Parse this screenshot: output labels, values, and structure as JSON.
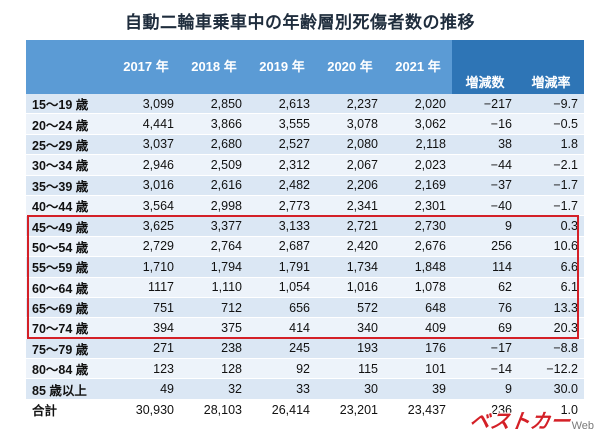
{
  "title": "自動二輪車乗車中の年齢層別死傷者数の推移",
  "columns": [
    "",
    "2017 年",
    "2018 年",
    "2019 年",
    "2020 年",
    "2021 年",
    "増減数",
    "増減率"
  ],
  "rows": [
    {
      "label": "15～19 歳",
      "values": [
        "3,099",
        "2,850",
        "2,613",
        "2,237",
        "2,020",
        "−217",
        "−9.7"
      ]
    },
    {
      "label": "20～24 歳",
      "values": [
        "4,441",
        "3,866",
        "3,555",
        "3,078",
        "3,062",
        "−16",
        "−0.5"
      ]
    },
    {
      "label": "25～29 歳",
      "values": [
        "3,037",
        "2,680",
        "2,527",
        "2,080",
        "2,118",
        "38",
        "1.8"
      ]
    },
    {
      "label": "30～34 歳",
      "values": [
        "2,946",
        "2,509",
        "2,312",
        "2,067",
        "2,023",
        "−44",
        "−2.1"
      ]
    },
    {
      "label": "35～39 歳",
      "values": [
        "3,016",
        "2,616",
        "2,482",
        "2,206",
        "2,169",
        "−37",
        "−1.7"
      ]
    },
    {
      "label": "40～44 歳",
      "values": [
        "3,564",
        "2,998",
        "2,773",
        "2,341",
        "2,301",
        "−40",
        "−1.7"
      ]
    },
    {
      "label": "45～49 歳",
      "values": [
        "3,625",
        "3,377",
        "3,133",
        "2,721",
        "2,730",
        "9",
        "0.3"
      ]
    },
    {
      "label": "50～54 歳",
      "values": [
        "2,729",
        "2,764",
        "2,687",
        "2,420",
        "2,676",
        "256",
        "10.6"
      ]
    },
    {
      "label": "55～59 歳",
      "values": [
        "1,710",
        "1,794",
        "1,791",
        "1,734",
        "1,848",
        "114",
        "6.6"
      ]
    },
    {
      "label": "60～64 歳",
      "values": [
        "1117",
        "1,110",
        "1,054",
        "1,016",
        "1,078",
        "62",
        "6.1"
      ]
    },
    {
      "label": "65～69 歳",
      "values": [
        "751",
        "712",
        "656",
        "572",
        "648",
        "76",
        "13.3"
      ]
    },
    {
      "label": "70～74 歳",
      "values": [
        "394",
        "375",
        "414",
        "340",
        "409",
        "69",
        "20.3"
      ]
    },
    {
      "label": "75～79 歳",
      "values": [
        "271",
        "238",
        "245",
        "193",
        "176",
        "−17",
        "−8.8"
      ]
    },
    {
      "label": "80～84 歳",
      "values": [
        "123",
        "128",
        "92",
        "115",
        "101",
        "−14",
        "−12.2"
      ]
    },
    {
      "label": "85 歳以上",
      "values": [
        "49",
        "32",
        "33",
        "30",
        "39",
        "9",
        "30.0"
      ]
    },
    {
      "label": "合計",
      "values": [
        "30,930",
        "28,103",
        "26,414",
        "23,201",
        "23,437",
        "236",
        "1.0"
      ]
    }
  ],
  "highlight_rows": [
    "45～49 歳",
    "70～74 歳"
  ],
  "logo": {
    "main": "ベストカー",
    "suffix": "Web"
  },
  "colors": {
    "header": "#5b9bd5",
    "header_dark": "#2e75b6",
    "row_a": "#dbe7f4",
    "row_b": "#edf3fa",
    "highlight": "#d42027"
  }
}
